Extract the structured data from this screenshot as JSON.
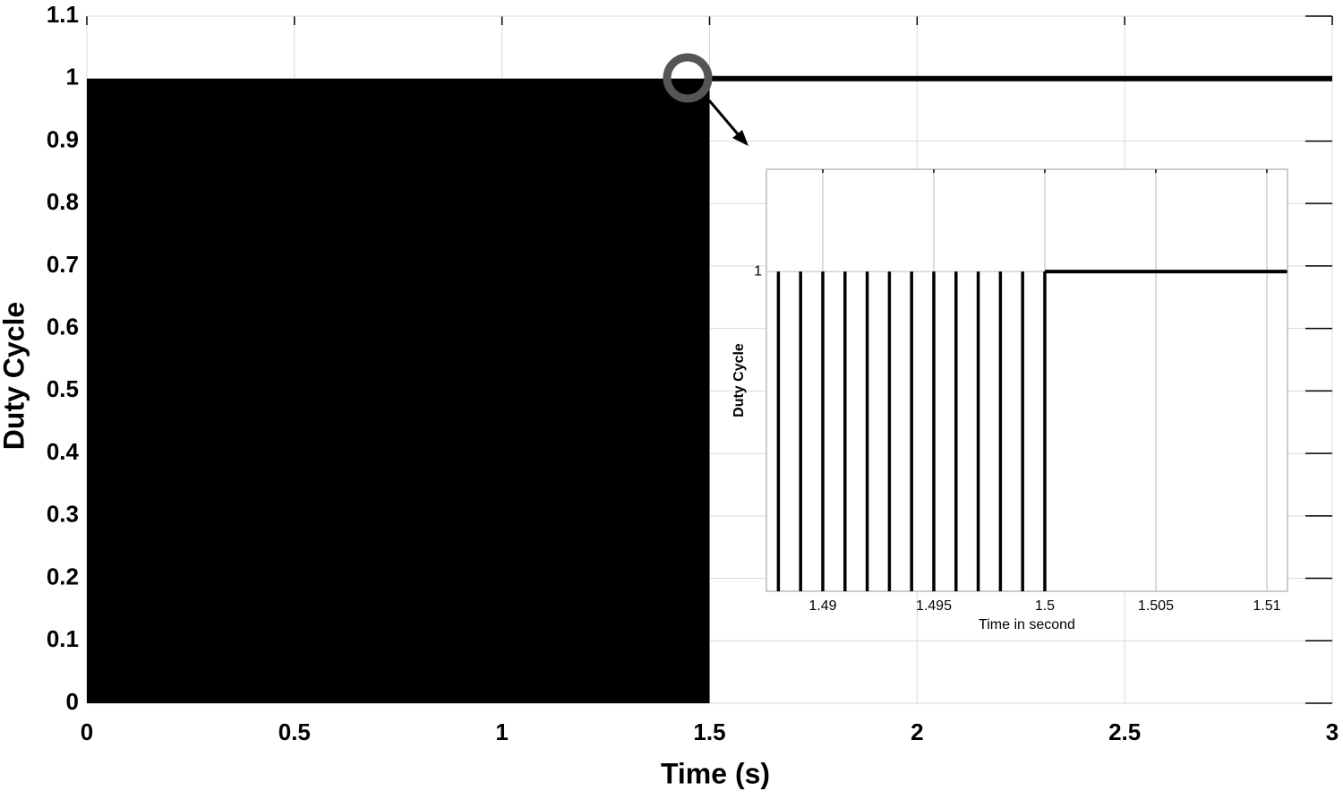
{
  "chart_data": [
    {
      "type": "line",
      "xlabel": "Time (s)",
      "ylabel": "Duty Cycle",
      "xlim": [
        0,
        3
      ],
      "ylim": [
        0,
        1.1
      ],
      "xticks": [
        0,
        0.5,
        1,
        1.5,
        2,
        2.5,
        3
      ],
      "yticks": [
        0,
        0.1,
        0.2,
        0.3,
        0.4,
        0.5,
        0.6,
        0.7,
        0.8,
        0.9,
        1,
        1.1
      ],
      "grid": true,
      "color": "#000000",
      "series": [
        {
          "style": "area",
          "x": [
            0,
            1.5
          ],
          "values": [
            1,
            1
          ]
        },
        {
          "style": "line",
          "x": [
            1.5,
            3
          ],
          "values": [
            1,
            1
          ]
        }
      ]
    },
    {
      "type": "line",
      "xlabel": "Time in second",
      "ylabel": "Duty Cycle",
      "xlim": [
        1.48746,
        1.51093
      ],
      "ylim": [
        0,
        1.32
      ],
      "xticks": [
        1.49,
        1.495,
        1.5,
        1.505,
        1.51
      ],
      "yticks": [
        1
      ],
      "grid": true,
      "color": "#000000",
      "series": [
        {
          "style": "stem",
          "x": [
            1.488,
            1.489,
            1.49,
            1.491,
            1.492,
            1.493,
            1.494,
            1.495,
            1.496,
            1.497,
            1.498,
            1.499,
            1.5
          ],
          "values": [
            1,
            1,
            1,
            1,
            1,
            1,
            1,
            1,
            1,
            1,
            1,
            1,
            1
          ]
        },
        {
          "style": "line",
          "x": [
            1.5,
            1.5109
          ],
          "values": [
            1,
            1
          ]
        }
      ]
    }
  ]
}
